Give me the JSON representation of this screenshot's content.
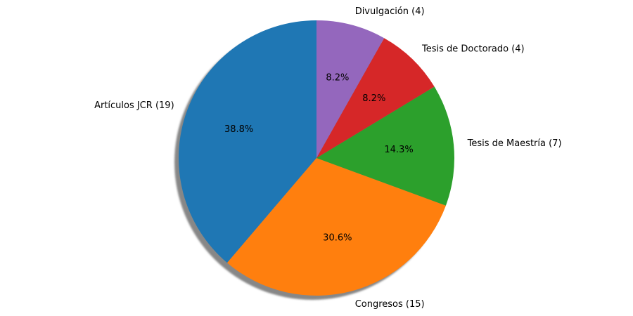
{
  "chart_data": {
    "type": "pie",
    "title": "",
    "start_angle_deg": 90,
    "direction": "counterclockwise",
    "shadow": true,
    "slices": [
      {
        "label": "Artículos JCR (19)",
        "value": 19,
        "pct_label": "38.8%",
        "color": "#1f77b4"
      },
      {
        "label": "Congresos (15)",
        "value": 15,
        "pct_label": "30.6%",
        "color": "#ff7f0e"
      },
      {
        "label": "Tesis de Maestría (7)",
        "value": 7,
        "pct_label": "14.3%",
        "color": "#2ca02c"
      },
      {
        "label": "Tesis de Doctorado (4)",
        "value": 4,
        "pct_label": "8.2%",
        "color": "#d62728"
      },
      {
        "label": "Divulgación (4)",
        "value": 4,
        "pct_label": "8.2%",
        "color": "#9467bd"
      }
    ]
  }
}
